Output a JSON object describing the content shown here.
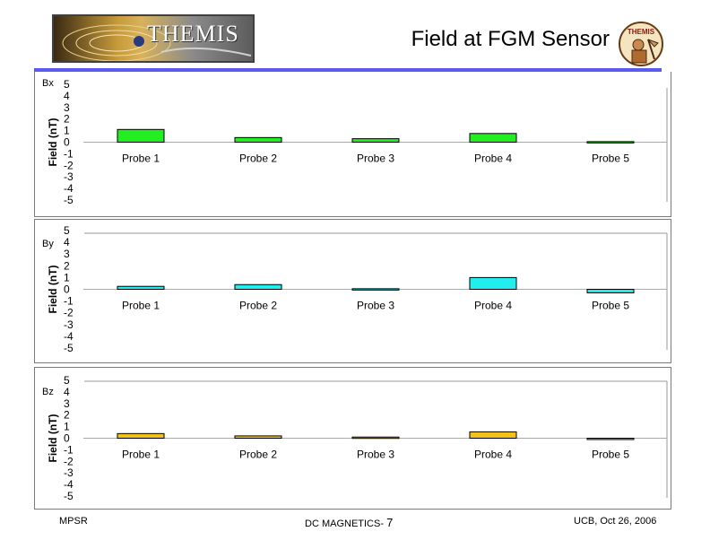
{
  "header": {
    "logo_text": "THEMIS",
    "title": "Field at FGM Sensor",
    "seal_text": "THEMIS"
  },
  "footer": {
    "left": "MPSR",
    "center_label": "DC MAGNETICS-",
    "center_number": "7",
    "right": "UCB, Oct 26, 2006"
  },
  "colors": {
    "bx": "#22ee22",
    "by": "#22eeee",
    "bz": "#f2c21a",
    "title_rule": "#5a5af0"
  },
  "chart_data": [
    {
      "type": "bar",
      "panel_label": "Bx",
      "ylabel": "Field (nT)",
      "ylim": [
        -5,
        5
      ],
      "yticks": [
        "5",
        "4",
        "3",
        "2",
        "1",
        "0",
        "-1",
        "-2",
        "-3",
        "-4",
        "-5"
      ],
      "categories": [
        "Probe 1",
        "Probe 2",
        "Probe 3",
        "Probe 4",
        "Probe 5"
      ],
      "values": [
        1.1,
        0.4,
        0.3,
        0.75,
        0.05
      ],
      "color": "#22ee22"
    },
    {
      "type": "bar",
      "panel_label": "By",
      "ylabel": "Field (nT)",
      "ylim": [
        -5,
        5
      ],
      "yticks": [
        "5",
        "4",
        "3",
        "2",
        "1",
        "0",
        "-1",
        "-2",
        "-3",
        "-4",
        "-5"
      ],
      "categories": [
        "Probe 1",
        "Probe 2",
        "Probe 3",
        "Probe 4",
        "Probe 5"
      ],
      "values": [
        0.25,
        0.4,
        0.05,
        1.0,
        -0.3
      ],
      "color": "#22eeee"
    },
    {
      "type": "bar",
      "panel_label": "Bz",
      "ylabel": "Field (nT)",
      "ylim": [
        -5,
        5
      ],
      "yticks": [
        "5",
        "4",
        "3",
        "2",
        "1",
        "0",
        "-1",
        "-2",
        "-3",
        "-4",
        "-5"
      ],
      "categories": [
        "Probe 1",
        "Probe 2",
        "Probe 3",
        "Probe 4",
        "Probe 5"
      ],
      "values": [
        0.4,
        0.2,
        0.1,
        0.55,
        -0.1
      ],
      "color": "#f2c21a"
    }
  ]
}
